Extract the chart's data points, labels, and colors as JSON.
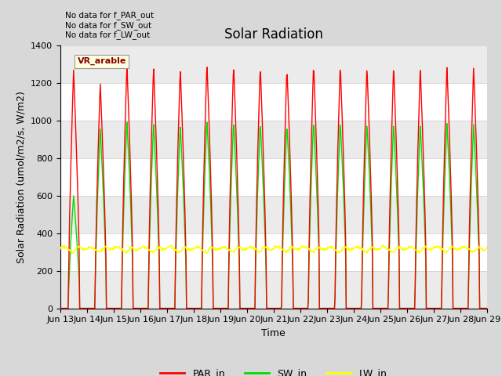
{
  "title": "Solar Radiation",
  "xlabel": "Time",
  "ylabel": "Solar Radiation (umol/m2/s, W/m2)",
  "ylim": [
    0,
    1400
  ],
  "legend_entries": [
    "PAR_in",
    "SW_in",
    "LW_in"
  ],
  "line_colors": {
    "PAR_in": "red",
    "SW_in": "#00dd00",
    "LW_in": "yellow"
  },
  "annotation_text": "No data for f_PAR_out\nNo data for f_SW_out\nNo data for f_LW_out",
  "vr_label": "VR_arable",
  "background_color": "#d8d8d8",
  "plot_bg_color": "white",
  "n_days": 16,
  "PAR_peak": 1300,
  "SW_peak": 1000,
  "LW_mean": 320,
  "LW_amplitude": 25,
  "title_fontsize": 12,
  "axis_label_fontsize": 9,
  "tick_fontsize": 8,
  "yticks": [
    0,
    200,
    400,
    600,
    800,
    1000,
    1200,
    1400
  ]
}
